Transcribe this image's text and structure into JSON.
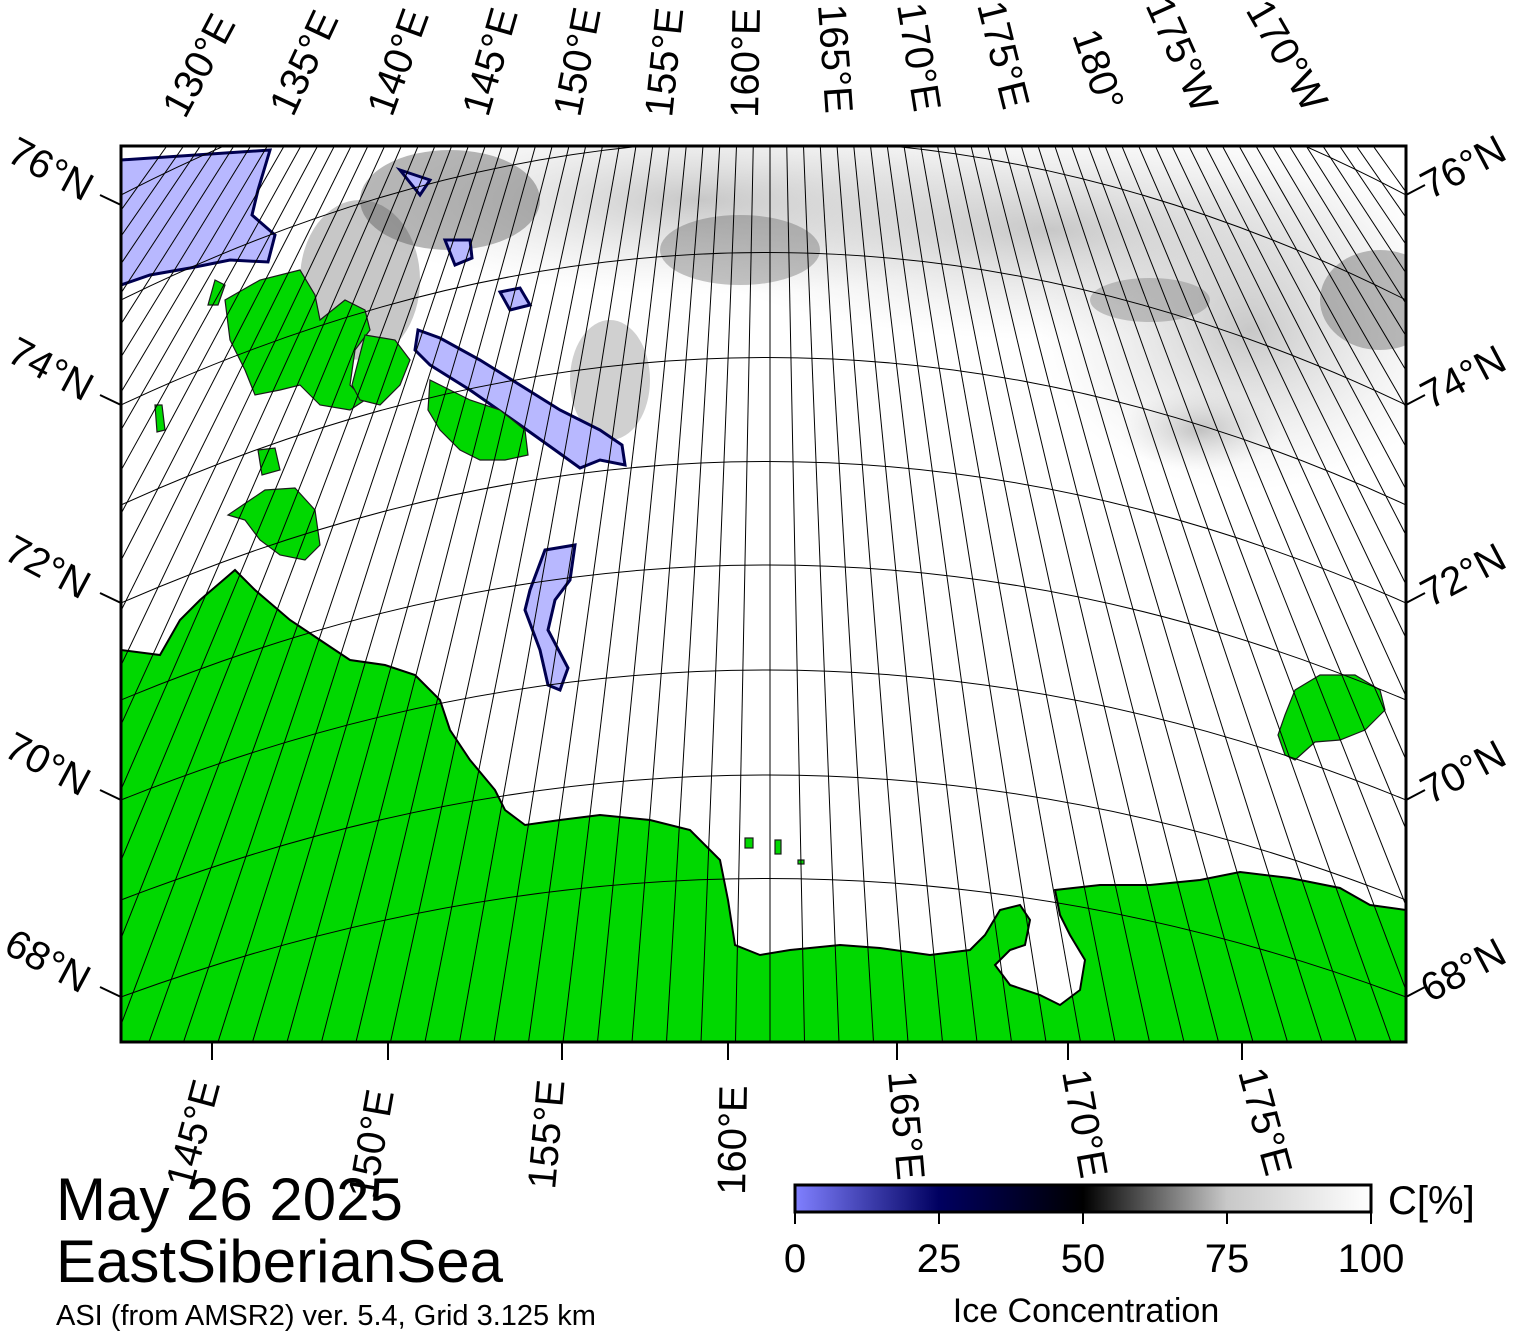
{
  "map": {
    "date": "May 26 2025",
    "region": "EastSiberianSea",
    "source": "ASI (from AMSR2) ver. 5.4,  Grid 3.125 km",
    "colors": {
      "land": "#00d800",
      "fast_ice": "#b8b8ff",
      "ocean": "#ffffff",
      "frame": "#000000",
      "grid": "#000000"
    },
    "lat_labels": [
      {
        "left": "76°N",
        "right": "76°N"
      },
      {
        "left": "74°N",
        "right": "74°N"
      },
      {
        "left": "72°N",
        "right": "72°N"
      },
      {
        "left": "70°N",
        "right": "70°N"
      },
      {
        "left": "68°N",
        "right": "68°N"
      }
    ],
    "top_lon_labels": [
      "130°E",
      "135°E",
      "140°E",
      "145°E",
      "150°E",
      "155°E",
      "160°E",
      "165°E",
      "170°E",
      "175°E",
      "180°",
      "175°W",
      "170°W"
    ],
    "bottom_lon_labels": [
      "145°E",
      "150°E",
      "155°E",
      "160°E",
      "165°E",
      "170°E",
      "175°E"
    ]
  },
  "colorbar": {
    "unit_label": "C[%]",
    "title": "Ice Concentration",
    "ticks": [
      "0",
      "25",
      "50",
      "75",
      "100"
    ],
    "stops": [
      "#8080ff",
      "#000060",
      "#000000",
      "#c8c8c8",
      "#ffffff"
    ]
  }
}
